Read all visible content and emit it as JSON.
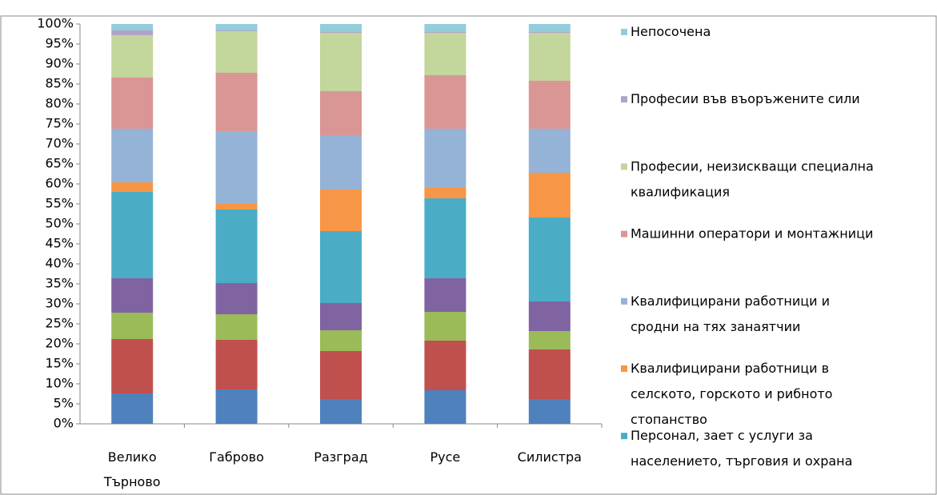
{
  "chart_data": {
    "type": "stacked_bar",
    "categories": [
      "Велико Търново",
      "Габрово",
      "Разград",
      "Русе",
      "Силистра"
    ],
    "series": [
      {
        "color": "#4f81bd",
        "values": [
          7.6,
          8.6,
          6.2,
          8.4,
          6.2
        ]
      },
      {
        "color": "#c0504d",
        "values": [
          13.6,
          12.4,
          12,
          12.4,
          12.4
        ]
      },
      {
        "color": "#9bbb59",
        "values": [
          6.6,
          6.4,
          5.2,
          7.2,
          4.6
        ]
      },
      {
        "color": "#8064a2",
        "values": [
          8.6,
          7.8,
          6.8,
          8.4,
          7.4
        ]
      },
      {
        "name": "Персонал, зает с услуги за населението, търговия и охрана",
        "color": "#4bacc6",
        "values": [
          21.6,
          18.4,
          18,
          20,
          21
        ]
      },
      {
        "name": "Квалифицирани работници в селското, горското и рибното стопанство",
        "color": "#f79646",
        "values": [
          2.4,
          1.4,
          10.4,
          2.6,
          11.2
        ]
      },
      {
        "name": "Квалифицирани работници и сродни на тях занаятчии",
        "color": "#95b3d7",
        "values": [
          13.4,
          18.2,
          13.6,
          14.8,
          11
        ]
      },
      {
        "name": "Машинни оператори и монтажници",
        "color": "#d99694",
        "values": [
          12.8,
          14.6,
          11,
          13.4,
          12
        ]
      },
      {
        "name": "Професии, неизискващи специална квалификация",
        "color": "#c3d69b",
        "values": [
          10.6,
          10.4,
          14.6,
          10.6,
          12
        ]
      },
      {
        "name": "Професии във въоръжените сили",
        "color": "#b3a2c7",
        "values": [
          1.2,
          0.2,
          0.2,
          0.2,
          0.2
        ]
      },
      {
        "name": "Непосочена",
        "color": "#93cddd",
        "values": [
          1.6,
          1.6,
          2,
          2,
          2
        ]
      }
    ],
    "ylim": [
      0,
      100
    ],
    "yticks": [
      {
        "value": 0,
        "label": "0%"
      },
      {
        "value": 5,
        "label": "5%"
      },
      {
        "value": 10,
        "label": "10%"
      },
      {
        "value": 15,
        "label": "15%"
      },
      {
        "value": 20,
        "label": "20%"
      },
      {
        "value": 25,
        "label": "25%"
      },
      {
        "value": 30,
        "label": "30%"
      },
      {
        "value": 35,
        "label": "35%"
      },
      {
        "value": 40,
        "label": "40%"
      },
      {
        "value": 45,
        "label": "45%"
      },
      {
        "value": 50,
        "label": "50%"
      },
      {
        "value": 55,
        "label": "55%"
      },
      {
        "value": 60,
        "label": "60%"
      },
      {
        "value": 65,
        "label": "65%"
      },
      {
        "value": 70,
        "label": "70%"
      },
      {
        "value": 75,
        "label": "75%"
      },
      {
        "value": 80,
        "label": "80%"
      },
      {
        "value": 85,
        "label": "85%"
      },
      {
        "value": 90,
        "label": "90%"
      },
      {
        "value": 95,
        "label": "95%"
      },
      {
        "value": 100,
        "label": "100%"
      }
    ],
    "grid": false
  }
}
